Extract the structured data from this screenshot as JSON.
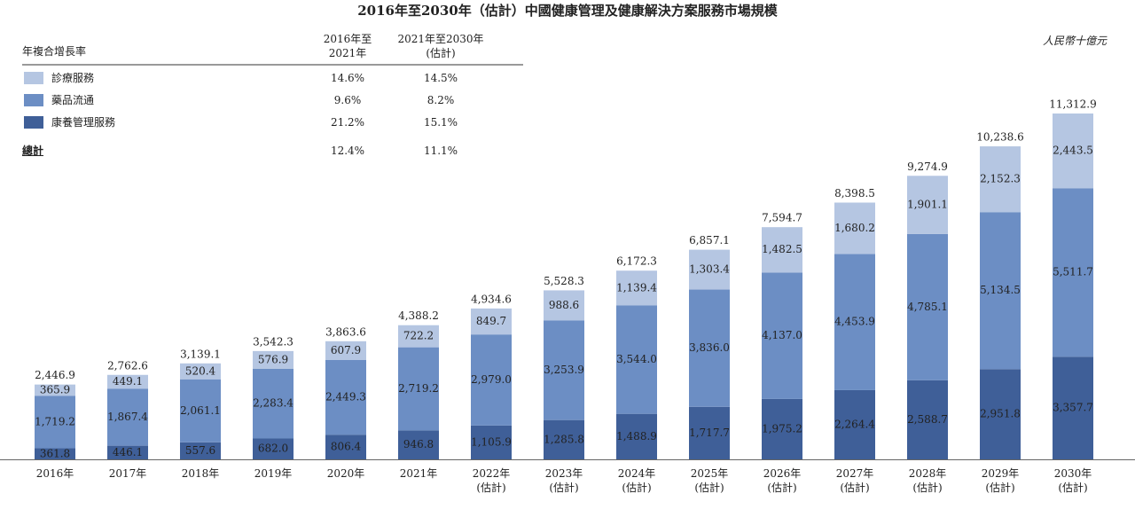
{
  "chart_data": {
    "type": "stacked_bar",
    "title": "2016年至2030年（估計）中國健康管理及健康解決方案服務市場規模",
    "unit": "人民幣十億元",
    "cagr_header": [
      "年複合增長率",
      "2016年至\n2021年",
      "2021年至2030年\n(估計)"
    ],
    "categories": [
      "2016年",
      "2017年",
      "2018年",
      "2019年",
      "2020年",
      "2021年",
      "2022年\n(估計)",
      "2023年\n(估計)",
      "2024年\n(估計)",
      "2025年\n(估計)",
      "2026年\n(估計)",
      "2027年\n(估計)",
      "2028年\n(估計)",
      "2029年\n(估計)",
      "2030年\n(估計)"
    ],
    "series": [
      {
        "name": "康養管理服務",
        "color": "#3f5f98",
        "cagr": [
          "21.2%",
          "15.1%"
        ],
        "values": [
          361.8,
          446.1,
          557.6,
          682.0,
          806.4,
          946.8,
          1105.9,
          1285.8,
          1488.9,
          1717.7,
          1975.2,
          2264.4,
          2588.7,
          2951.8,
          3357.7
        ],
        "value_labels": [
          "361.8",
          "446.1",
          "557.6",
          "682.0",
          "806.4",
          "946.8",
          "1,105.9",
          "1,285.8",
          "1,488.9",
          "1,717.7",
          "1,975.2",
          "2,264.4",
          "2,588.7",
          "2,951.8",
          "3,357.7"
        ]
      },
      {
        "name": "藥品流通",
        "color": "#6c8ec4",
        "cagr": [
          "9.6%",
          "8.2%"
        ],
        "values": [
          1719.2,
          1867.4,
          2061.1,
          2283.4,
          2449.3,
          2719.2,
          2979.0,
          3253.9,
          3544.0,
          3836.0,
          4137.0,
          4453.9,
          4785.1,
          5134.5,
          5511.7
        ],
        "value_labels": [
          "1,719.2",
          "1,867.4",
          "2,061.1",
          "2,283.4",
          "2,449.3",
          "2,719.2",
          "2,979.0",
          "3,253.9",
          "3,544.0",
          "3,836.0",
          "4,137.0",
          "4,453.9",
          "4,785.1",
          "5,134.5",
          "5,511.7"
        ]
      },
      {
        "name": "診療服務",
        "color": "#b5c6e2",
        "cagr": [
          "14.6%",
          "14.5%"
        ],
        "values": [
          365.9,
          449.1,
          520.4,
          576.9,
          607.9,
          722.2,
          849.7,
          988.6,
          1139.4,
          1303.4,
          1482.5,
          1680.2,
          1901.1,
          2152.3,
          2443.5
        ],
        "value_labels": [
          "365.9",
          "449.1",
          "520.4",
          "576.9",
          "607.9",
          "722.2",
          "849.7",
          "988.6",
          "1,139.4",
          "1,303.4",
          "1,482.5",
          "1,680.2",
          "1,901.1",
          "2,152.3",
          "2,443.5"
        ]
      }
    ],
    "total_name": "總計",
    "total_cagr": [
      "12.4%",
      "11.1%"
    ],
    "totals": [
      2446.9,
      2762.6,
      3139.1,
      3542.3,
      3863.6,
      4388.2,
      4934.6,
      5528.3,
      6172.3,
      6857.1,
      7594.7,
      8398.5,
      9274.9,
      10238.6,
      11312.9
    ],
    "total_labels": [
      "2,446.9",
      "2,762.6",
      "3,139.1",
      "3,542.3",
      "3,863.6",
      "4,388.2",
      "4,934.6",
      "5,528.3",
      "6,172.3",
      "6,857.1",
      "7,594.7",
      "8,398.5",
      "9,274.9",
      "10,238.6",
      "11,312.9"
    ]
  }
}
